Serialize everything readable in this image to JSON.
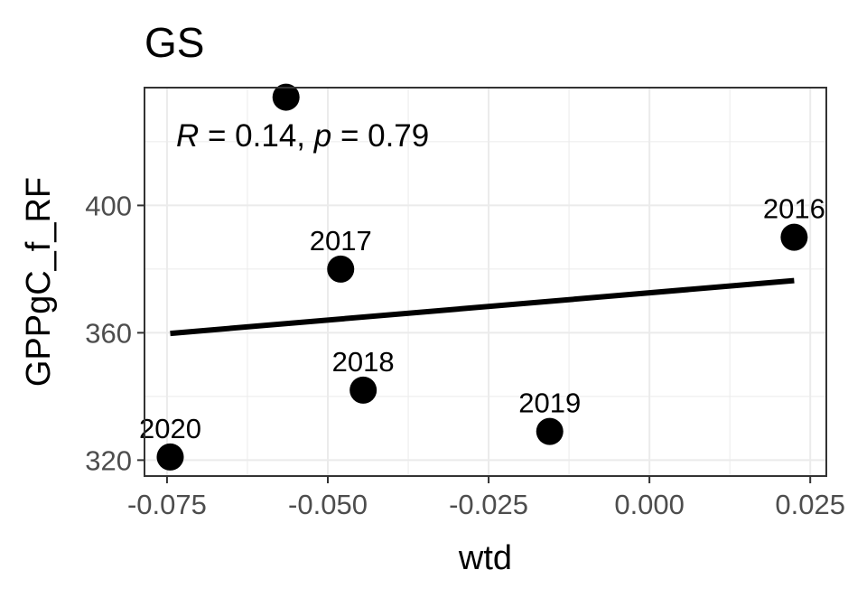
{
  "chart_data": {
    "type": "scatter",
    "title": "GS",
    "xlabel": "wtd",
    "ylabel": "GPPgC_f_RF",
    "xlim": [
      -0.0785,
      0.0275
    ],
    "ylim": [
      315,
      437
    ],
    "x_ticks": [
      -0.075,
      -0.05,
      -0.025,
      0.0,
      0.025
    ],
    "x_tick_labels": [
      "-0.075",
      "-0.050",
      "-0.025",
      "0.000",
      "0.025"
    ],
    "y_ticks": [
      320,
      360,
      400
    ],
    "y_tick_labels": [
      "320",
      "360",
      "400"
    ],
    "grid": true,
    "points": [
      {
        "x": 0.0225,
        "y": 390,
        "label": "2016"
      },
      {
        "x": -0.048,
        "y": 380,
        "label": "2017"
      },
      {
        "x": -0.0445,
        "y": 342,
        "label": "2018"
      },
      {
        "x": -0.0155,
        "y": 329,
        "label": "2019"
      },
      {
        "x": -0.0745,
        "y": 321,
        "label": "2020"
      },
      {
        "x": -0.0565,
        "y": 434,
        "label": ""
      }
    ],
    "fit_line": {
      "x": [
        -0.0745,
        0.0225
      ],
      "y": [
        359.8,
        376.4
      ]
    },
    "annotation": {
      "r_symbol": "R",
      "r_text": " = 0.14, ",
      "p_symbol": "p",
      "p_text": " = 0.79"
    },
    "colors": {
      "points": "#000000",
      "line": "#000000",
      "grid": "#ebebeb",
      "panel_border": "#333333"
    }
  }
}
